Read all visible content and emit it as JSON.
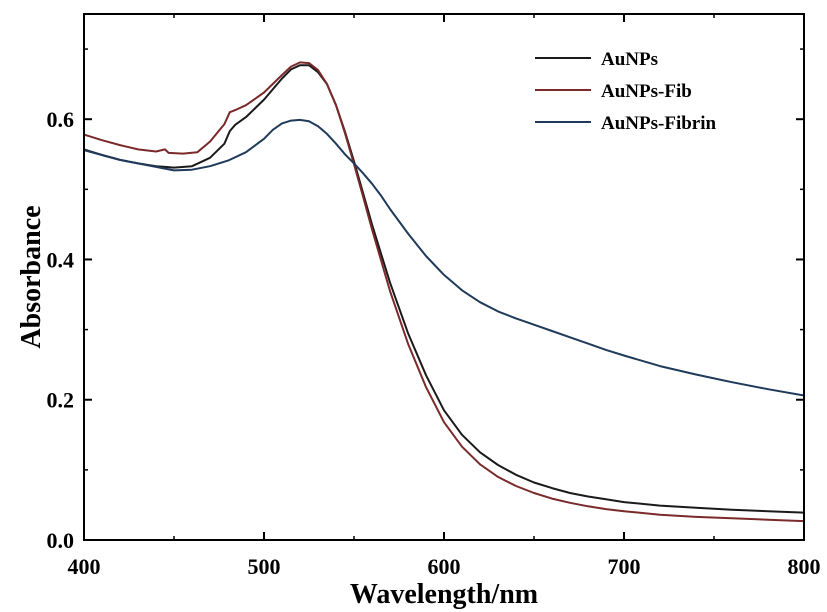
{
  "chart_data": {
    "type": "line",
    "title": "",
    "xlabel": "Wavelength/nm",
    "ylabel": "Absorbance",
    "xlim": [
      400,
      800
    ],
    "ylim": [
      0.0,
      0.75
    ],
    "xticks": [
      400,
      500,
      600,
      700,
      800
    ],
    "xtick_labels": [
      "400",
      "500",
      "600",
      "700",
      "800"
    ],
    "yticks": [
      0.0,
      0.2,
      0.4,
      0.6
    ],
    "ytick_labels": [
      "0.0",
      "0.2",
      "0.4",
      "0.6"
    ],
    "grid": false,
    "legend_position": "top-right",
    "series": [
      {
        "name": "AuNPs",
        "color": "#1a1a1a",
        "points": [
          [
            400,
            0.557
          ],
          [
            410,
            0.549
          ],
          [
            420,
            0.542
          ],
          [
            430,
            0.537
          ],
          [
            440,
            0.533
          ],
          [
            445,
            0.532
          ],
          [
            450,
            0.531
          ],
          [
            460,
            0.533
          ],
          [
            470,
            0.545
          ],
          [
            478,
            0.565
          ],
          [
            481,
            0.583
          ],
          [
            484,
            0.592
          ],
          [
            490,
            0.603
          ],
          [
            500,
            0.628
          ],
          [
            510,
            0.658
          ],
          [
            515,
            0.671
          ],
          [
            520,
            0.677
          ],
          [
            525,
            0.677
          ],
          [
            530,
            0.667
          ],
          [
            535,
            0.65
          ],
          [
            540,
            0.62
          ],
          [
            545,
            0.582
          ],
          [
            550,
            0.54
          ],
          [
            555,
            0.495
          ],
          [
            560,
            0.45
          ],
          [
            570,
            0.367
          ],
          [
            580,
            0.295
          ],
          [
            590,
            0.235
          ],
          [
            600,
            0.185
          ],
          [
            610,
            0.15
          ],
          [
            620,
            0.125
          ],
          [
            630,
            0.107
          ],
          [
            640,
            0.093
          ],
          [
            650,
            0.082
          ],
          [
            660,
            0.074
          ],
          [
            670,
            0.067
          ],
          [
            680,
            0.062
          ],
          [
            690,
            0.058
          ],
          [
            700,
            0.054
          ],
          [
            720,
            0.049
          ],
          [
            740,
            0.046
          ],
          [
            760,
            0.043
          ],
          [
            780,
            0.041
          ],
          [
            800,
            0.039
          ]
        ]
      },
      {
        "name": "AuNPs-Fib",
        "color": "#7a2a2a",
        "points": [
          [
            400,
            0.578
          ],
          [
            410,
            0.57
          ],
          [
            420,
            0.563
          ],
          [
            430,
            0.557
          ],
          [
            440,
            0.554
          ],
          [
            445,
            0.557
          ],
          [
            447,
            0.552
          ],
          [
            455,
            0.551
          ],
          [
            463,
            0.553
          ],
          [
            470,
            0.568
          ],
          [
            478,
            0.593
          ],
          [
            481,
            0.61
          ],
          [
            484,
            0.613
          ],
          [
            490,
            0.62
          ],
          [
            500,
            0.638
          ],
          [
            510,
            0.663
          ],
          [
            515,
            0.675
          ],
          [
            520,
            0.681
          ],
          [
            525,
            0.68
          ],
          [
            530,
            0.67
          ],
          [
            535,
            0.65
          ],
          [
            540,
            0.62
          ],
          [
            545,
            0.58
          ],
          [
            550,
            0.536
          ],
          [
            555,
            0.49
          ],
          [
            560,
            0.443
          ],
          [
            570,
            0.355
          ],
          [
            580,
            0.28
          ],
          [
            590,
            0.218
          ],
          [
            600,
            0.168
          ],
          [
            610,
            0.133
          ],
          [
            620,
            0.108
          ],
          [
            630,
            0.09
          ],
          [
            640,
            0.077
          ],
          [
            650,
            0.067
          ],
          [
            660,
            0.059
          ],
          [
            670,
            0.053
          ],
          [
            680,
            0.048
          ],
          [
            690,
            0.044
          ],
          [
            700,
            0.041
          ],
          [
            720,
            0.036
          ],
          [
            740,
            0.033
          ],
          [
            760,
            0.031
          ],
          [
            780,
            0.029
          ],
          [
            800,
            0.027
          ]
        ]
      },
      {
        "name": "AuNPs-Fibrin",
        "color": "#1f3a5a",
        "points": [
          [
            400,
            0.556
          ],
          [
            410,
            0.549
          ],
          [
            420,
            0.542
          ],
          [
            430,
            0.537
          ],
          [
            440,
            0.532
          ],
          [
            450,
            0.527
          ],
          [
            460,
            0.528
          ],
          [
            470,
            0.533
          ],
          [
            480,
            0.541
          ],
          [
            490,
            0.553
          ],
          [
            500,
            0.572
          ],
          [
            505,
            0.585
          ],
          [
            510,
            0.594
          ],
          [
            515,
            0.598
          ],
          [
            520,
            0.599
          ],
          [
            525,
            0.597
          ],
          [
            530,
            0.59
          ],
          [
            535,
            0.579
          ],
          [
            540,
            0.565
          ],
          [
            545,
            0.55
          ],
          [
            550,
            0.537
          ],
          [
            555,
            0.523
          ],
          [
            560,
            0.508
          ],
          [
            565,
            0.491
          ],
          [
            570,
            0.472
          ],
          [
            580,
            0.437
          ],
          [
            590,
            0.405
          ],
          [
            600,
            0.378
          ],
          [
            610,
            0.356
          ],
          [
            620,
            0.339
          ],
          [
            630,
            0.326
          ],
          [
            640,
            0.316
          ],
          [
            650,
            0.307
          ],
          [
            660,
            0.298
          ],
          [
            670,
            0.289
          ],
          [
            680,
            0.28
          ],
          [
            690,
            0.271
          ],
          [
            700,
            0.263
          ],
          [
            720,
            0.248
          ],
          [
            740,
            0.236
          ],
          [
            760,
            0.225
          ],
          [
            780,
            0.215
          ],
          [
            800,
            0.206
          ]
        ]
      }
    ]
  }
}
